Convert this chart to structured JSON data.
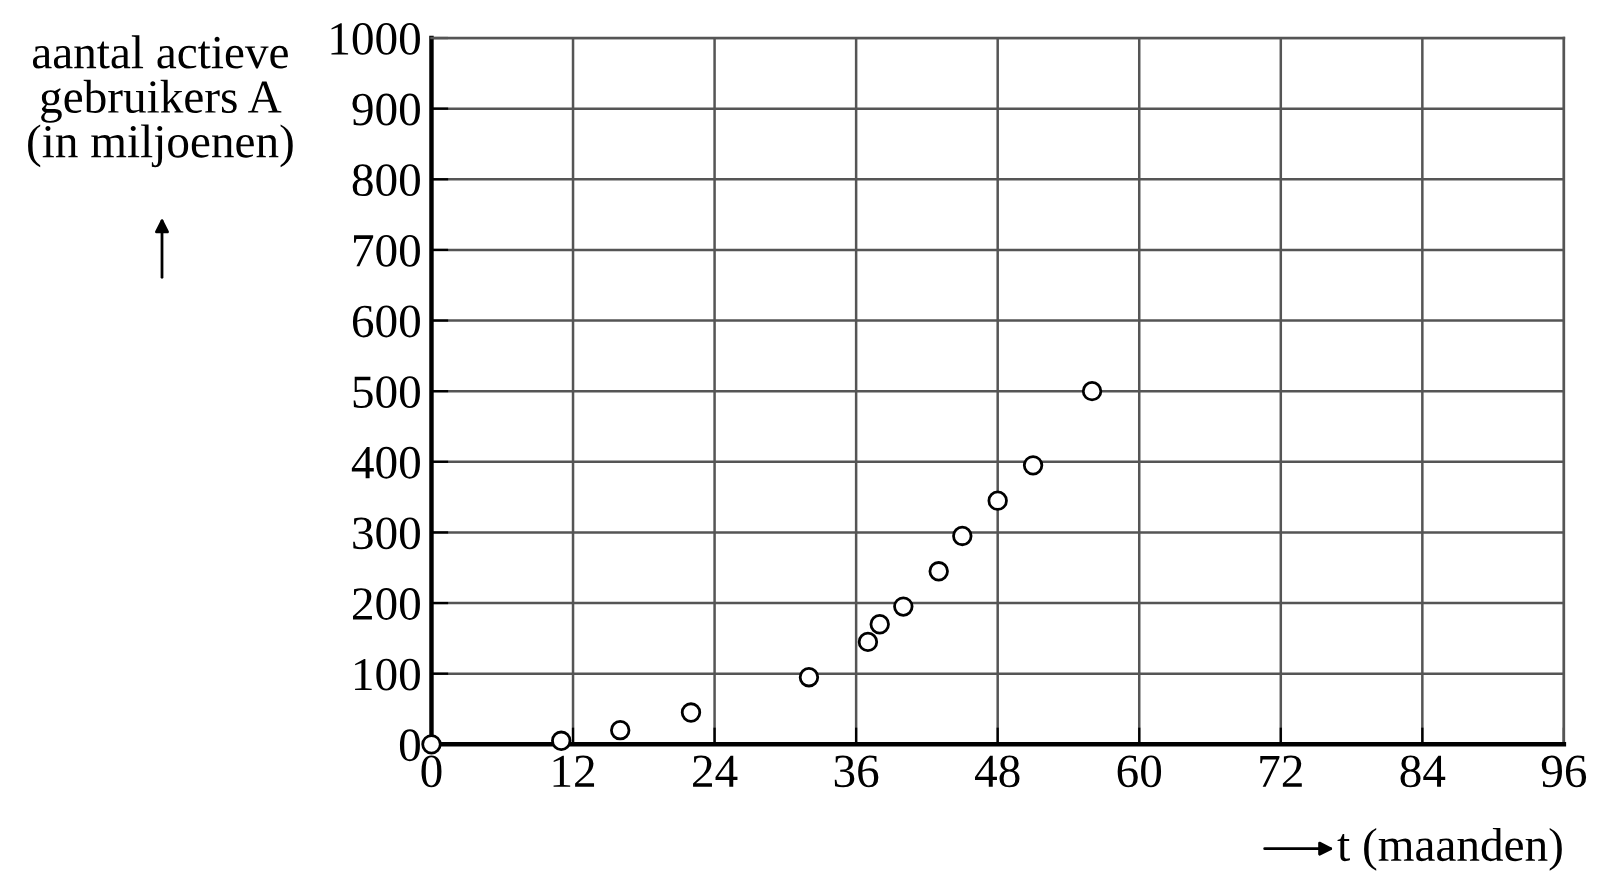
{
  "chart_data": {
    "type": "scatter",
    "xlabel": "t (maanden)",
    "ylabel": "aantal actieve\ngebruikers A\n(in miljoenen)",
    "x": [
      0,
      11,
      16,
      22,
      32,
      37,
      38,
      40,
      43,
      45,
      48,
      51,
      56
    ],
    "series": [
      {
        "color": "#000000",
        "values": [
          0,
          5,
          20,
          45,
          95,
          145,
          170,
          195,
          245,
          295,
          345,
          395,
          500
        ]
      }
    ],
    "marker": "circle",
    "grid": true,
    "xlim": [
      0,
      96
    ],
    "xticks": [
      0,
      12,
      24,
      36,
      48,
      60,
      72,
      84,
      96
    ],
    "ylim": [
      0,
      1000
    ],
    "yticks": [
      0,
      100,
      200,
      300,
      400,
      500,
      600,
      700,
      800,
      900,
      1000
    ]
  }
}
